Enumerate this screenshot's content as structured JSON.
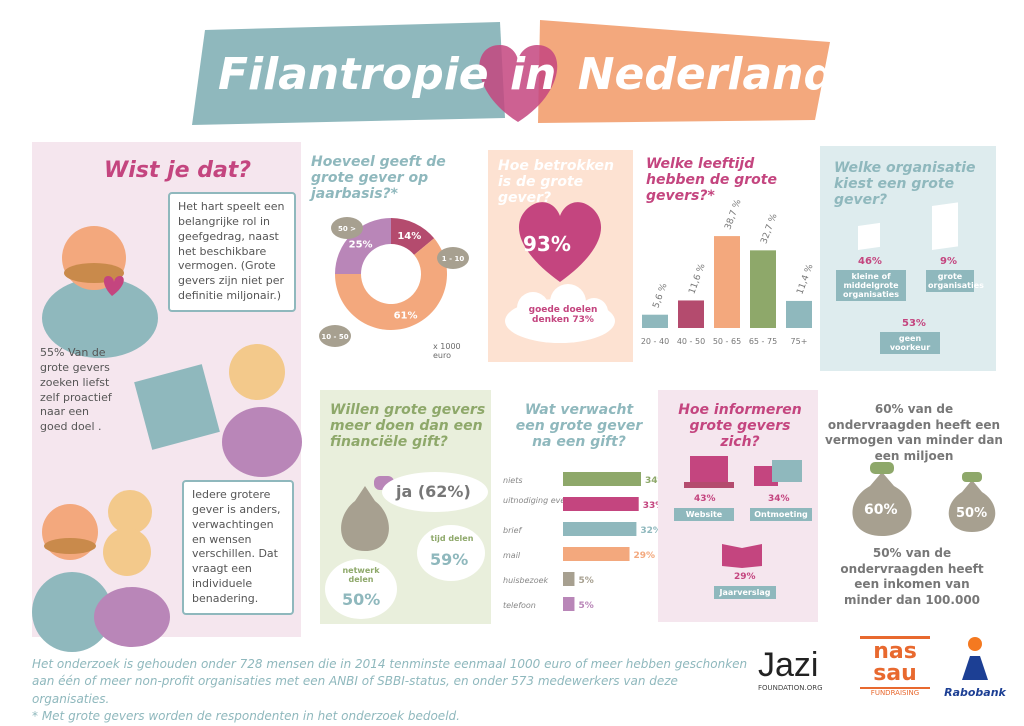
{
  "header": {
    "title_part1": "Filantropie",
    "title_part2": "in",
    "title_part3": "Nederland"
  },
  "wist": {
    "heading": "Wist je dat?",
    "bubble1": "Het hart speelt een belangrijke rol in geefgedrag, naast het beschikbare vermogen. (Grote gevers zijn niet per definitie miljonair.)",
    "bubble2": "55% Van de grote gevers zoeken liefst zelf proactief naar een goed doel .",
    "bubble3": "Iedere grotere gever is anders, verwachtingen en wensen verschillen. Dat vraagt een individuele benadering."
  },
  "jaarbasis": {
    "heading": "Hoeveel geeft de grote gever op jaarbasis?*",
    "slices": [
      {
        "label": "1 - 10",
        "value": 61,
        "text": "61%",
        "color": "#f3a87d"
      },
      {
        "label": "10 - 50",
        "value": 25,
        "text": "25%",
        "color": "#b986b8"
      },
      {
        "label": "50 >",
        "value": 14,
        "text": "14%",
        "color": "#b44b6e"
      }
    ],
    "unit": "x 1000 euro"
  },
  "betrokken": {
    "heading": "Hoe betrokken is de grote gever?",
    "heart_value": "93%",
    "cloud_text": "goede doelen denken 73%"
  },
  "leeftijd": {
    "heading": "Welke leeftijd hebben de grote gevers?*",
    "bars": [
      {
        "category": "20 - 40",
        "value": 5.6,
        "text": "5,6 %",
        "color": "#8fb8bd"
      },
      {
        "category": "40 - 50",
        "value": 11.6,
        "text": "11,6 %",
        "color": "#b44b6e"
      },
      {
        "category": "50 - 65",
        "value": 38.7,
        "text": "38,7 %",
        "color": "#f3a87d"
      },
      {
        "category": "65 - 75",
        "value": 32.7,
        "text": "32,7 %",
        "color": "#8ea86a"
      },
      {
        "category": "75+",
        "value": 11.4,
        "text": "11,4 %",
        "color": "#8fb8bd"
      }
    ]
  },
  "organisatie": {
    "heading": "Welke organisatie kiest een grote gever?",
    "small_pct": "46%",
    "small_label": "kleine of middelgrote organisaties",
    "large_pct": "9%",
    "large_label": "grote organisaties",
    "none_pct": "53%",
    "none_label": "geen voorkeur"
  },
  "meer": {
    "heading": "Willen grote gevers meer doen dan een financiële gift?",
    "ja": "ja (62%)",
    "netwerk_label": "netwerk delen",
    "netwerk_value": "50%",
    "tijd_label": "tijd delen",
    "tijd_value": "59%"
  },
  "verwacht": {
    "heading": "Wat verwacht een grote gever na een gift?",
    "rows": [
      {
        "label": "niets",
        "value": 34,
        "text": "34%",
        "color": "#8ea86a"
      },
      {
        "label": "uitnodiging evenement",
        "value": 33,
        "text": "33%",
        "color": "#c4457f"
      },
      {
        "label": "brief",
        "value": 32,
        "text": "32%",
        "color": "#8fb8bd"
      },
      {
        "label": "mail",
        "value": 29,
        "text": "29%",
        "color": "#f3a87d"
      },
      {
        "label": "huisbezoek",
        "value": 5,
        "text": "5%",
        "color": "#a7a090"
      },
      {
        "label": "telefoon",
        "value": 5,
        "text": "5%",
        "color": "#b986b8"
      }
    ]
  },
  "informeren": {
    "heading": "Hoe informeren grote gevers zich?",
    "website_pct": "43%",
    "website_label": "Website",
    "ontmoeting_pct": "34%",
    "ontmoeting_label": "Ontmoeting",
    "jaarverslag_pct": "29%",
    "jaarverslag_label": "Jaarverslag"
  },
  "vermogen": {
    "top_text": "60% van de ondervraagden heeft een vermogen van minder dan een miljoen",
    "bag1": "60%",
    "bag2": "50%",
    "bottom_text": "50% van de ondervraagden heeft een inkomen van minder dan 100.000"
  },
  "footer": {
    "line1": "Het onderzoek is gehouden onder 728 mensen die in 2014 tenminste eenmaal 1000 euro of meer hebben geschonken",
    "line2": "aan één of meer non-profit organisaties met een ANBI of SBBI-status, en onder 573 medewerkers van deze organisaties.",
    "line3": "* Met grote gevers worden de respondenten in het onderzoek bedoeld."
  },
  "logos": {
    "jazi": "Jazi",
    "jazi_sub": "FOUNDATION.ORG",
    "nassau1": "nas",
    "nassau2": "sau",
    "nassau_sub": "FUNDRAISING",
    "rabobank": "Rabobank"
  }
}
